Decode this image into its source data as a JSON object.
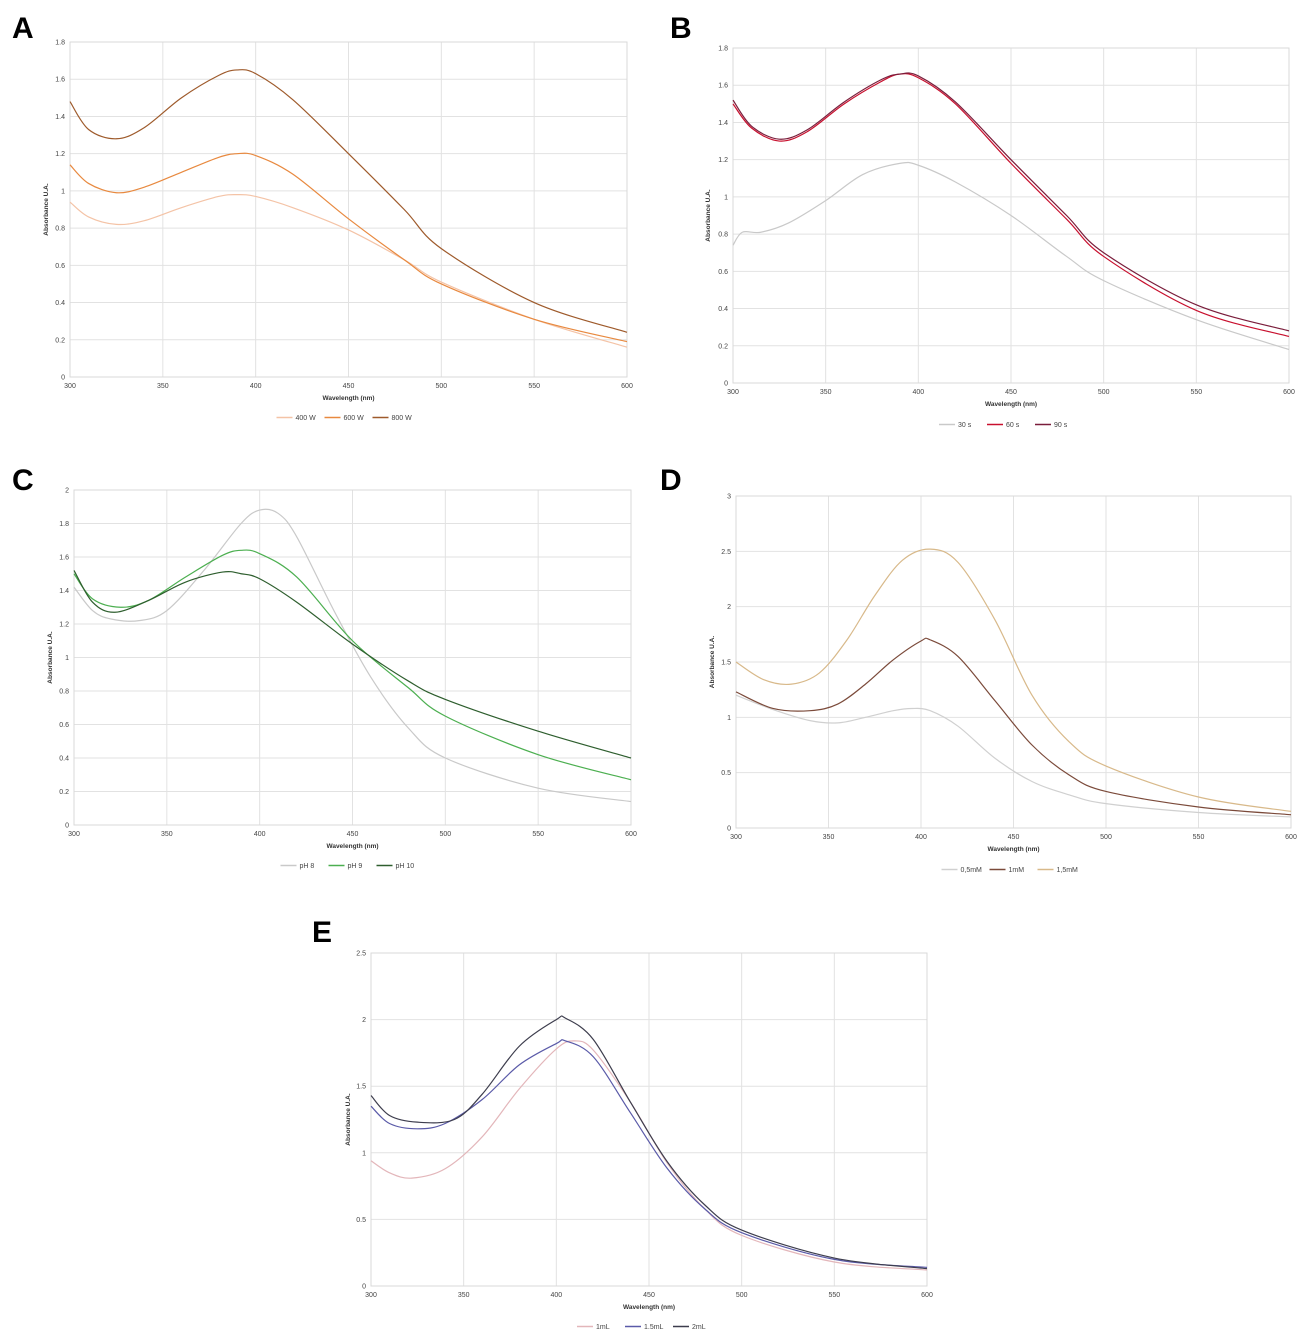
{
  "chart_data": [
    {
      "panel": "A",
      "type": "line",
      "xlabel": "Wavelength (nm)",
      "ylabel": "Absorbance U.A.",
      "xlim": [
        300,
        600
      ],
      "ylim": [
        0,
        1.8
      ],
      "xticks": [
        300,
        350,
        400,
        450,
        500,
        550,
        600
      ],
      "yticks": [
        0,
        0.2,
        0.4,
        0.6,
        0.8,
        1,
        1.2,
        1.4,
        1.6,
        1.8
      ],
      "legend_position": "bottom",
      "grid": true,
      "series": [
        {
          "name": "400 W",
          "color": "#f4c3a6",
          "x": [
            300,
            310,
            325,
            340,
            360,
            380,
            390,
            400,
            420,
            450,
            480,
            500,
            550,
            600
          ],
          "y": [
            0.94,
            0.86,
            0.82,
            0.84,
            0.91,
            0.97,
            0.98,
            0.97,
            0.91,
            0.79,
            0.63,
            0.51,
            0.31,
            0.16
          ]
        },
        {
          "name": "600 W",
          "color": "#e8893f",
          "x": [
            300,
            310,
            325,
            340,
            360,
            380,
            390,
            400,
            420,
            450,
            480,
            500,
            550,
            600
          ],
          "y": [
            1.14,
            1.04,
            0.99,
            1.02,
            1.1,
            1.18,
            1.2,
            1.19,
            1.09,
            0.85,
            0.63,
            0.5,
            0.31,
            0.19
          ]
        },
        {
          "name": "800 W",
          "color": "#9e5a2b",
          "x": [
            300,
            310,
            325,
            340,
            360,
            380,
            390,
            400,
            420,
            450,
            480,
            500,
            550,
            600
          ],
          "y": [
            1.48,
            1.33,
            1.28,
            1.34,
            1.5,
            1.62,
            1.65,
            1.63,
            1.49,
            1.2,
            0.9,
            0.69,
            0.4,
            0.24
          ]
        }
      ]
    },
    {
      "panel": "B",
      "type": "line",
      "xlabel": "Wavelength (nm)",
      "ylabel": "Absorbance U.A.",
      "xlim": [
        300,
        600
      ],
      "ylim": [
        0,
        1.8
      ],
      "xticks": [
        300,
        350,
        400,
        450,
        500,
        550,
        600
      ],
      "yticks": [
        0,
        0.2,
        0.4,
        0.6,
        0.8,
        1,
        1.2,
        1.4,
        1.6,
        1.8
      ],
      "legend_position": "bottom",
      "grid": true,
      "series": [
        {
          "name": "30 s",
          "color": "#c9c9c9",
          "x": [
            300,
            305,
            315,
            330,
            350,
            370,
            390,
            400,
            420,
            450,
            480,
            500,
            550,
            600
          ],
          "y": [
            0.74,
            0.81,
            0.81,
            0.86,
            0.98,
            1.12,
            1.18,
            1.17,
            1.08,
            0.9,
            0.68,
            0.55,
            0.34,
            0.18
          ]
        },
        {
          "name": "60 s",
          "color": "#c8102e",
          "x": [
            300,
            310,
            325,
            340,
            360,
            380,
            390,
            400,
            420,
            450,
            480,
            500,
            550,
            600
          ],
          "y": [
            1.5,
            1.37,
            1.3,
            1.35,
            1.5,
            1.62,
            1.66,
            1.64,
            1.5,
            1.18,
            0.88,
            0.68,
            0.39,
            0.25
          ]
        },
        {
          "name": "90 s",
          "color": "#7a1d3b",
          "x": [
            300,
            310,
            325,
            340,
            360,
            380,
            390,
            400,
            420,
            450,
            480,
            500,
            550,
            600
          ],
          "y": [
            1.52,
            1.38,
            1.31,
            1.36,
            1.51,
            1.63,
            1.66,
            1.65,
            1.51,
            1.2,
            0.9,
            0.7,
            0.42,
            0.28
          ]
        }
      ]
    },
    {
      "panel": "C",
      "type": "line",
      "xlabel": "Wavelength (nm)",
      "ylabel": "Absorbance U.A.",
      "xlim": [
        300,
        600
      ],
      "ylim": [
        0,
        2
      ],
      "xticks": [
        300,
        350,
        400,
        450,
        500,
        550,
        600
      ],
      "yticks": [
        0,
        0.2,
        0.4,
        0.6,
        0.8,
        1,
        1.2,
        1.4,
        1.6,
        1.8,
        2
      ],
      "legend_position": "bottom",
      "grid": true,
      "series": [
        {
          "name": "pH 8",
          "color": "#c9c9c9",
          "x": [
            300,
            310,
            320,
            335,
            350,
            370,
            390,
            400,
            410,
            420,
            440,
            460,
            480,
            500,
            550,
            600
          ],
          "y": [
            1.42,
            1.28,
            1.23,
            1.22,
            1.28,
            1.52,
            1.8,
            1.88,
            1.86,
            1.72,
            1.28,
            0.88,
            0.58,
            0.4,
            0.22,
            0.14
          ]
        },
        {
          "name": "pH 9",
          "color": "#4caf50",
          "x": [
            300,
            310,
            325,
            340,
            360,
            380,
            390,
            400,
            420,
            450,
            480,
            500,
            550,
            600
          ],
          "y": [
            1.5,
            1.35,
            1.3,
            1.34,
            1.48,
            1.61,
            1.64,
            1.62,
            1.48,
            1.1,
            0.82,
            0.65,
            0.42,
            0.27
          ]
        },
        {
          "name": "pH 10",
          "color": "#2e5e2e",
          "x": [
            300,
            310,
            322,
            340,
            360,
            380,
            390,
            400,
            420,
            450,
            480,
            500,
            550,
            600
          ],
          "y": [
            1.52,
            1.33,
            1.27,
            1.34,
            1.45,
            1.51,
            1.5,
            1.47,
            1.33,
            1.08,
            0.86,
            0.75,
            0.56,
            0.4
          ]
        }
      ]
    },
    {
      "panel": "D",
      "type": "line",
      "xlabel": "Wavelength (nm)",
      "ylabel": "Absorbance U.A.",
      "xlim": [
        300,
        600
      ],
      "ylim": [
        0,
        3
      ],
      "xticks": [
        300,
        350,
        400,
        450,
        500,
        550,
        600
      ],
      "yticks": [
        0,
        0.5,
        1,
        1.5,
        2,
        2.5,
        3
      ],
      "legend_position": "bottom",
      "grid": true,
      "series": [
        {
          "name": "0,5mM",
          "color": "#d0d0d0",
          "x": [
            300,
            320,
            340,
            355,
            370,
            385,
            395,
            405,
            420,
            440,
            460,
            480,
            500,
            550,
            600
          ],
          "y": [
            1.2,
            1.07,
            0.97,
            0.95,
            1.0,
            1.06,
            1.08,
            1.06,
            0.92,
            0.63,
            0.42,
            0.3,
            0.22,
            0.14,
            0.1
          ]
        },
        {
          "name": "1mM",
          "color": "#7b4a3a",
          "x": [
            300,
            320,
            340,
            355,
            370,
            385,
            400,
            405,
            420,
            440,
            460,
            480,
            500,
            550,
            600
          ],
          "y": [
            1.23,
            1.08,
            1.06,
            1.12,
            1.3,
            1.52,
            1.69,
            1.7,
            1.55,
            1.15,
            0.75,
            0.48,
            0.33,
            0.19,
            0.12
          ]
        },
        {
          "name": "1,5mM",
          "color": "#d8b98a",
          "x": [
            300,
            315,
            330,
            345,
            360,
            375,
            390,
            405,
            420,
            440,
            460,
            480,
            500,
            550,
            600
          ],
          "y": [
            1.5,
            1.34,
            1.3,
            1.4,
            1.7,
            2.1,
            2.42,
            2.52,
            2.4,
            1.88,
            1.2,
            0.78,
            0.56,
            0.28,
            0.15
          ]
        }
      ]
    },
    {
      "panel": "E",
      "type": "line",
      "xlabel": "Wavelength (nm)",
      "ylabel": "Absorbance U.A.",
      "xlim": [
        300,
        600
      ],
      "ylim": [
        0,
        2.5
      ],
      "xticks": [
        300,
        350,
        400,
        450,
        500,
        550,
        600
      ],
      "yticks": [
        0,
        0.5,
        1,
        1.5,
        2,
        2.5
      ],
      "legend_position": "bottom",
      "grid": true,
      "series": [
        {
          "name": "1mL",
          "color": "#e3b6ba",
          "x": [
            300,
            310,
            322,
            340,
            360,
            380,
            400,
            410,
            420,
            440,
            460,
            480,
            500,
            550,
            600
          ],
          "y": [
            0.94,
            0.85,
            0.81,
            0.88,
            1.12,
            1.48,
            1.78,
            1.84,
            1.77,
            1.38,
            0.92,
            0.58,
            0.38,
            0.18,
            0.12
          ]
        },
        {
          "name": "1.5mL",
          "color": "#5a5aa8",
          "x": [
            300,
            310,
            325,
            340,
            360,
            380,
            400,
            405,
            420,
            440,
            460,
            480,
            500,
            550,
            600
          ],
          "y": [
            1.35,
            1.22,
            1.18,
            1.22,
            1.4,
            1.66,
            1.82,
            1.84,
            1.72,
            1.3,
            0.88,
            0.58,
            0.4,
            0.2,
            0.14
          ]
        },
        {
          "name": "2mL",
          "color": "#3d3d4d",
          "x": [
            300,
            310,
            325,
            345,
            360,
            380,
            400,
            405,
            420,
            440,
            460,
            480,
            500,
            550,
            600
          ],
          "y": [
            1.43,
            1.28,
            1.23,
            1.25,
            1.44,
            1.8,
            2.0,
            2.01,
            1.85,
            1.38,
            0.93,
            0.61,
            0.42,
            0.21,
            0.13
          ]
        }
      ]
    }
  ]
}
